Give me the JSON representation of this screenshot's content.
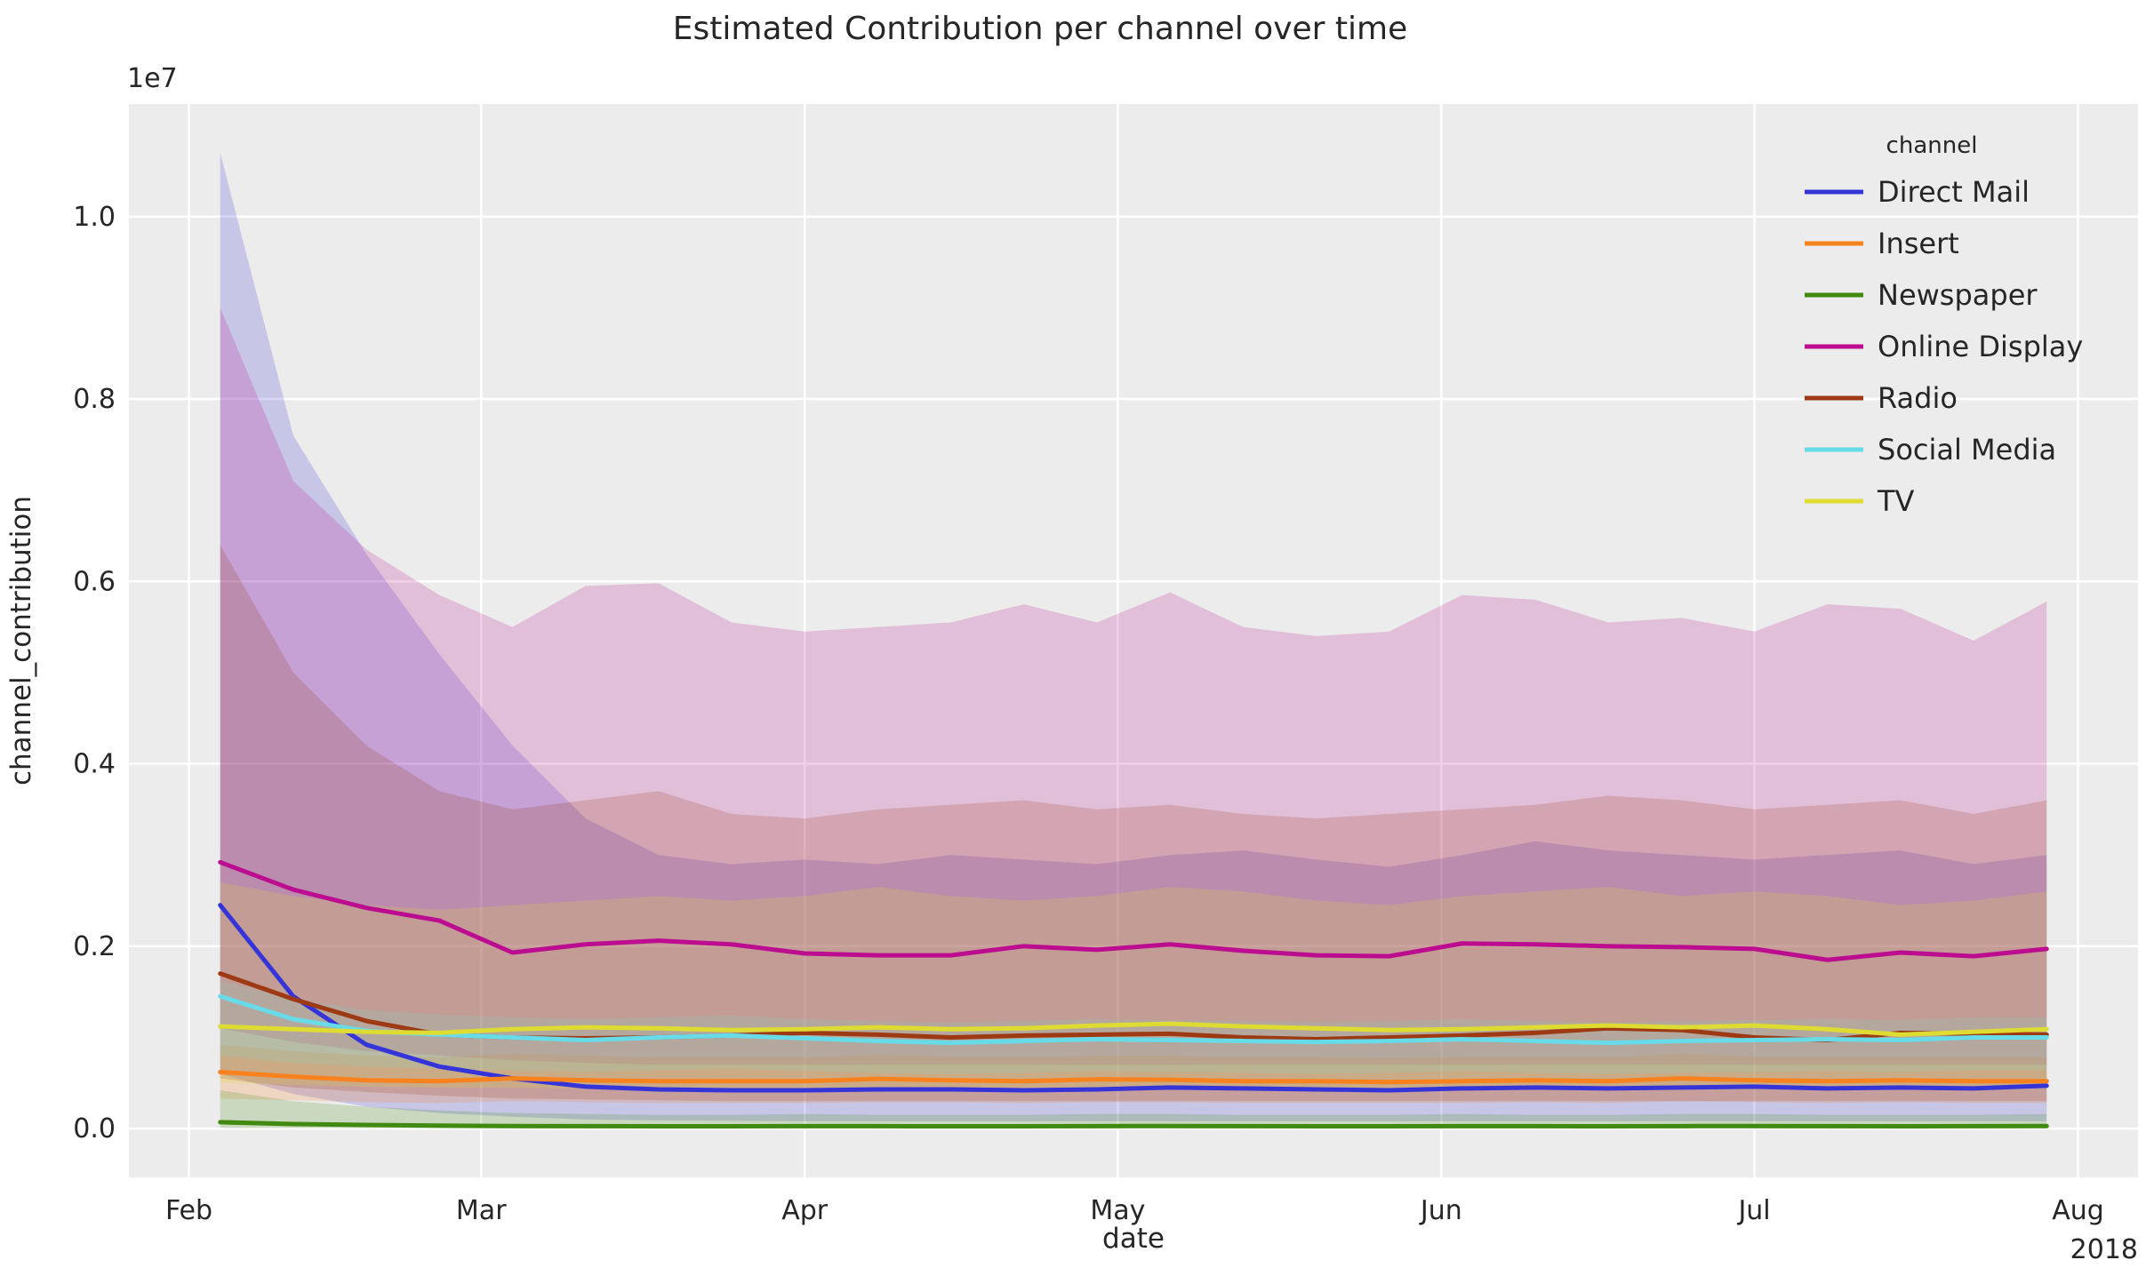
{
  "chart_data": {
    "type": "line",
    "title": "Estimated Contribution per channel over time",
    "xlabel": "date",
    "ylabel": "channel_contribution",
    "y_offset_label": "1e7",
    "x_year_label": "2018",
    "legend_title": "channel",
    "legend_position": "upper right",
    "grid": true,
    "plot_background": "#ececec",
    "grid_color": "#ffffff",
    "text_color": "#262626",
    "band_alpha": 0.2,
    "unit": "1e6 (values below are in millions; y axis rendered as 0.0–1.0 × 1e7)",
    "x_unit": "days since 2018-02-01, weekly samples",
    "x": [
      3,
      10,
      17,
      24,
      31,
      38,
      45,
      52,
      59,
      66,
      73,
      80,
      87,
      94,
      101,
      108,
      115,
      122,
      129,
      136,
      143,
      150,
      157,
      164,
      171,
      178
    ],
    "xlim": [
      -5.75,
      186.75
    ],
    "ylim": [
      -0.535,
      11.235
    ],
    "x_tick_days": [
      0,
      28,
      59,
      89,
      120,
      150,
      181
    ],
    "x_tick_labels": [
      "Feb",
      "Mar",
      "Apr",
      "May",
      "Jun",
      "Jul",
      "Aug"
    ],
    "y_tick_values": [
      0,
      2,
      4,
      6,
      8,
      10
    ],
    "y_tick_labels": [
      "0.0",
      "0.2",
      "0.4",
      "0.6",
      "0.8",
      "1.0"
    ],
    "series": [
      {
        "name": "Direct Mail",
        "color": "#3534d8",
        "values": [
          2.45,
          1.45,
          0.92,
          0.68,
          0.55,
          0.46,
          0.43,
          0.42,
          0.42,
          0.43,
          0.43,
          0.42,
          0.43,
          0.45,
          0.44,
          0.43,
          0.42,
          0.44,
          0.45,
          0.44,
          0.45,
          0.46,
          0.44,
          0.45,
          0.44,
          0.47
        ],
        "ci_upper": [
          10.7,
          7.6,
          6.3,
          5.2,
          4.2,
          3.4,
          3.0,
          2.9,
          2.95,
          2.9,
          3.0,
          2.95,
          2.9,
          3.0,
          3.05,
          2.95,
          2.87,
          3.0,
          3.15,
          3.05,
          3.0,
          2.95,
          3.0,
          3.05,
          2.9,
          3.0
        ],
        "ci_lower": [
          0.6,
          0.38,
          0.24,
          0.17,
          0.13,
          0.1,
          0.09,
          0.085,
          0.08,
          0.08,
          0.08,
          0.08,
          0.08,
          0.08,
          0.08,
          0.08,
          0.08,
          0.08,
          0.08,
          0.08,
          0.08,
          0.08,
          0.08,
          0.08,
          0.08,
          0.08
        ]
      },
      {
        "name": "Insert",
        "color": "#f8821e",
        "values": [
          0.62,
          0.57,
          0.53,
          0.52,
          0.55,
          0.53,
          0.52,
          0.52,
          0.52,
          0.545,
          0.53,
          0.52,
          0.54,
          0.535,
          0.52,
          0.52,
          0.51,
          0.52,
          0.53,
          0.52,
          0.55,
          0.53,
          0.52,
          0.53,
          0.52,
          0.52
        ],
        "ci_upper": [
          0.92,
          0.85,
          0.8,
          0.78,
          0.82,
          0.8,
          0.78,
          0.78,
          0.78,
          0.81,
          0.79,
          0.78,
          0.8,
          0.8,
          0.78,
          0.78,
          0.77,
          0.78,
          0.79,
          0.78,
          0.82,
          0.79,
          0.78,
          0.79,
          0.78,
          0.78
        ],
        "ci_lower": [
          0.33,
          0.31,
          0.29,
          0.28,
          0.3,
          0.29,
          0.28,
          0.28,
          0.28,
          0.29,
          0.29,
          0.28,
          0.29,
          0.29,
          0.28,
          0.28,
          0.28,
          0.28,
          0.29,
          0.28,
          0.3,
          0.29,
          0.28,
          0.29,
          0.28,
          0.28
        ]
      },
      {
        "name": "Newspaper",
        "color": "#418a11",
        "values": [
          0.07,
          0.05,
          0.04,
          0.032,
          0.028,
          0.026,
          0.025,
          0.025,
          0.027,
          0.026,
          0.025,
          0.025,
          0.027,
          0.028,
          0.026,
          0.025,
          0.025,
          0.027,
          0.026,
          0.025,
          0.027,
          0.028,
          0.026,
          0.025,
          0.026,
          0.028
        ],
        "ci_upper": [
          0.42,
          0.3,
          0.24,
          0.2,
          0.17,
          0.16,
          0.15,
          0.15,
          0.16,
          0.15,
          0.15,
          0.15,
          0.16,
          0.16,
          0.15,
          0.15,
          0.15,
          0.16,
          0.15,
          0.15,
          0.16,
          0.16,
          0.15,
          0.15,
          0.15,
          0.16
        ],
        "ci_lower": [
          0.005,
          0.004,
          0.003,
          0.003,
          0.002,
          0.002,
          0.002,
          0.002,
          0.002,
          0.002,
          0.002,
          0.002,
          0.002,
          0.002,
          0.002,
          0.002,
          0.002,
          0.002,
          0.002,
          0.002,
          0.002,
          0.002,
          0.002,
          0.002,
          0.002,
          0.002
        ]
      },
      {
        "name": "Online Display",
        "color": "#bc0d90",
        "values": [
          2.92,
          2.62,
          2.42,
          2.28,
          1.93,
          2.02,
          2.06,
          2.02,
          1.92,
          1.9,
          1.9,
          2.0,
          1.96,
          2.02,
          1.95,
          1.9,
          1.89,
          2.03,
          2.02,
          2.0,
          1.99,
          1.97,
          1.85,
          1.93,
          1.89,
          1.97
        ],
        "ci_upper": [
          9.0,
          7.1,
          6.35,
          5.85,
          5.5,
          5.95,
          5.98,
          5.55,
          5.45,
          5.5,
          5.55,
          5.75,
          5.55,
          5.88,
          5.5,
          5.4,
          5.45,
          5.85,
          5.8,
          5.55,
          5.6,
          5.45,
          5.75,
          5.7,
          5.35,
          5.78
        ],
        "ci_lower": [
          1.1,
          0.95,
          0.85,
          0.8,
          0.75,
          0.72,
          0.7,
          0.7,
          0.7,
          0.7,
          0.7,
          0.7,
          0.7,
          0.7,
          0.7,
          0.7,
          0.7,
          0.7,
          0.7,
          0.7,
          0.7,
          0.7,
          0.7,
          0.7,
          0.7,
          0.7
        ]
      },
      {
        "name": "Radio",
        "color": "#9d3a14",
        "values": [
          1.7,
          1.42,
          1.18,
          1.03,
          1.0,
          0.99,
          1.0,
          1.02,
          1.05,
          1.03,
          1.0,
          1.02,
          1.03,
          1.04,
          1.0,
          0.98,
          1.0,
          1.02,
          1.05,
          1.1,
          1.08,
          1.0,
          0.97,
          1.05,
          1.04,
          1.03
        ],
        "ci_upper": [
          6.4,
          5.0,
          4.2,
          3.7,
          3.5,
          3.6,
          3.7,
          3.45,
          3.4,
          3.5,
          3.55,
          3.6,
          3.5,
          3.55,
          3.45,
          3.4,
          3.45,
          3.5,
          3.55,
          3.65,
          3.6,
          3.5,
          3.55,
          3.6,
          3.45,
          3.6
        ],
        "ci_lower": [
          0.55,
          0.45,
          0.4,
          0.36,
          0.33,
          0.32,
          0.31,
          0.3,
          0.3,
          0.3,
          0.3,
          0.3,
          0.3,
          0.3,
          0.3,
          0.3,
          0.3,
          0.3,
          0.3,
          0.3,
          0.3,
          0.3,
          0.3,
          0.3,
          0.3,
          0.3
        ]
      },
      {
        "name": "Social Media",
        "color": "#68dbe8",
        "values": [
          1.45,
          1.2,
          1.07,
          1.03,
          1.0,
          0.97,
          1.0,
          1.02,
          0.99,
          0.96,
          0.94,
          0.96,
          0.98,
          0.97,
          0.96,
          0.95,
          0.96,
          0.98,
          0.96,
          0.94,
          0.96,
          0.97,
          0.98,
          0.97,
          1.0,
          1.0
        ],
        "ci_upper": [
          1.62,
          1.42,
          1.3,
          1.25,
          1.22,
          1.2,
          1.22,
          1.24,
          1.2,
          1.18,
          1.16,
          1.18,
          1.2,
          1.19,
          1.18,
          1.17,
          1.18,
          1.2,
          1.18,
          1.16,
          1.18,
          1.19,
          1.2,
          1.19,
          1.22,
          1.22
        ],
        "ci_lower": [
          0.8,
          0.72,
          0.68,
          0.66,
          0.64,
          0.62,
          0.64,
          0.66,
          0.63,
          0.61,
          0.6,
          0.61,
          0.63,
          0.62,
          0.61,
          0.6,
          0.61,
          0.63,
          0.61,
          0.6,
          0.61,
          0.62,
          0.63,
          0.62,
          0.64,
          0.64
        ]
      },
      {
        "name": "TV",
        "color": "#dedb33",
        "values": [
          1.12,
          1.09,
          1.06,
          1.05,
          1.09,
          1.11,
          1.1,
          1.08,
          1.09,
          1.11,
          1.09,
          1.1,
          1.13,
          1.15,
          1.12,
          1.1,
          1.08,
          1.09,
          1.11,
          1.13,
          1.11,
          1.13,
          1.09,
          1.03,
          1.06,
          1.09
        ],
        "ci_upper": [
          2.7,
          2.55,
          2.45,
          2.4,
          2.45,
          2.5,
          2.55,
          2.5,
          2.55,
          2.65,
          2.55,
          2.5,
          2.55,
          2.65,
          2.6,
          2.5,
          2.45,
          2.55,
          2.6,
          2.65,
          2.55,
          2.6,
          2.55,
          2.45,
          2.5,
          2.6
        ],
        "ci_lower": [
          0.5,
          0.48,
          0.46,
          0.45,
          0.45,
          0.44,
          0.44,
          0.44,
          0.44,
          0.44,
          0.44,
          0.44,
          0.44,
          0.44,
          0.44,
          0.44,
          0.44,
          0.44,
          0.44,
          0.44,
          0.44,
          0.44,
          0.44,
          0.44,
          0.44,
          0.44
        ]
      }
    ]
  }
}
